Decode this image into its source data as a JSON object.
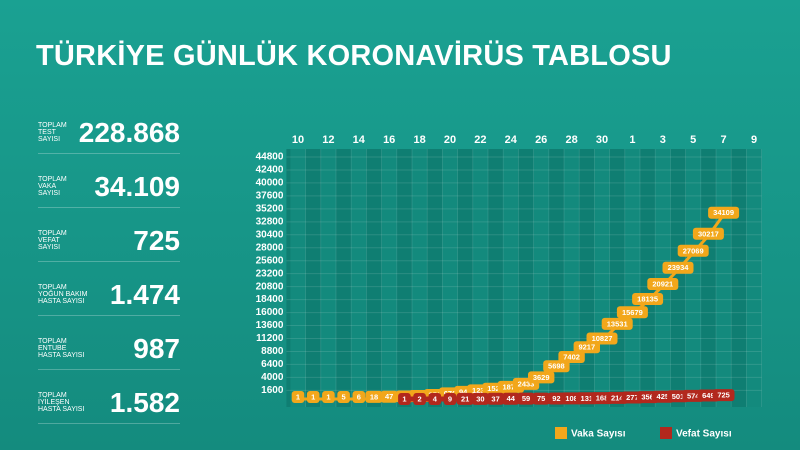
{
  "title": "TÜRKİYE GÜNLÜK KORONAVİRÜS TABLOSU",
  "stats": [
    {
      "label": [
        "TOPLAM",
        "TEST",
        "SAYISI"
      ],
      "value": "228.868"
    },
    {
      "label": [
        "TOPLAM",
        "VAKA",
        "SAYISI"
      ],
      "value": "34.109"
    },
    {
      "label": [
        "TOPLAM",
        "VEFAT",
        "SAYISI"
      ],
      "value": "725"
    },
    {
      "label": [
        "TOPLAM",
        "YOĞUN BAKIM",
        "HASTA SAYISI"
      ],
      "value": "1.474"
    },
    {
      "label": [
        "TOPLAM",
        "ENTUBE",
        "HASTA SAYISI"
      ],
      "value": "987"
    },
    {
      "label": [
        "TOPLAM",
        "İYİLEŞEN",
        "HASTA SAYISI"
      ],
      "value": "1.582"
    }
  ],
  "chart_data": {
    "type": "line",
    "categories": [
      "10",
      null,
      "12",
      null,
      "14",
      null,
      "16",
      null,
      "18",
      null,
      "20",
      null,
      "22",
      null,
      "24",
      null,
      "26",
      null,
      "28",
      null,
      "30",
      null,
      "1",
      null,
      "3",
      null,
      "5",
      null,
      "7",
      null,
      "9"
    ],
    "series": [
      {
        "name": "Vaka Sayısı",
        "color": "#f2a71b",
        "values": [
          1,
          1,
          1,
          5,
          6,
          18,
          47,
          98,
          191,
          359,
          670,
          947,
          1236,
          1529,
          1872,
          2433,
          3629,
          5698,
          7402,
          9217,
          10827,
          13531,
          15679,
          18135,
          20921,
          23934,
          27069,
          30217,
          34109,
          null,
          null
        ]
      },
      {
        "name": "Vefat Sayısı",
        "color": "#b2281d",
        "values": [
          null,
          null,
          null,
          null,
          null,
          null,
          null,
          1,
          2,
          4,
          9,
          21,
          30,
          37,
          44,
          59,
          75,
          92,
          108,
          131,
          168,
          214,
          277,
          356,
          425,
          501,
          574,
          649,
          725,
          null,
          null
        ]
      }
    ],
    "ylim": [
      0,
      44800
    ],
    "yticks": [
      1600,
      4000,
      6400,
      8800,
      11200,
      13600,
      16000,
      18400,
      20800,
      23200,
      25600,
      28000,
      30400,
      32800,
      35200,
      37600,
      40000,
      42400,
      44800
    ],
    "grid": true,
    "legend": "bottom-right"
  }
}
